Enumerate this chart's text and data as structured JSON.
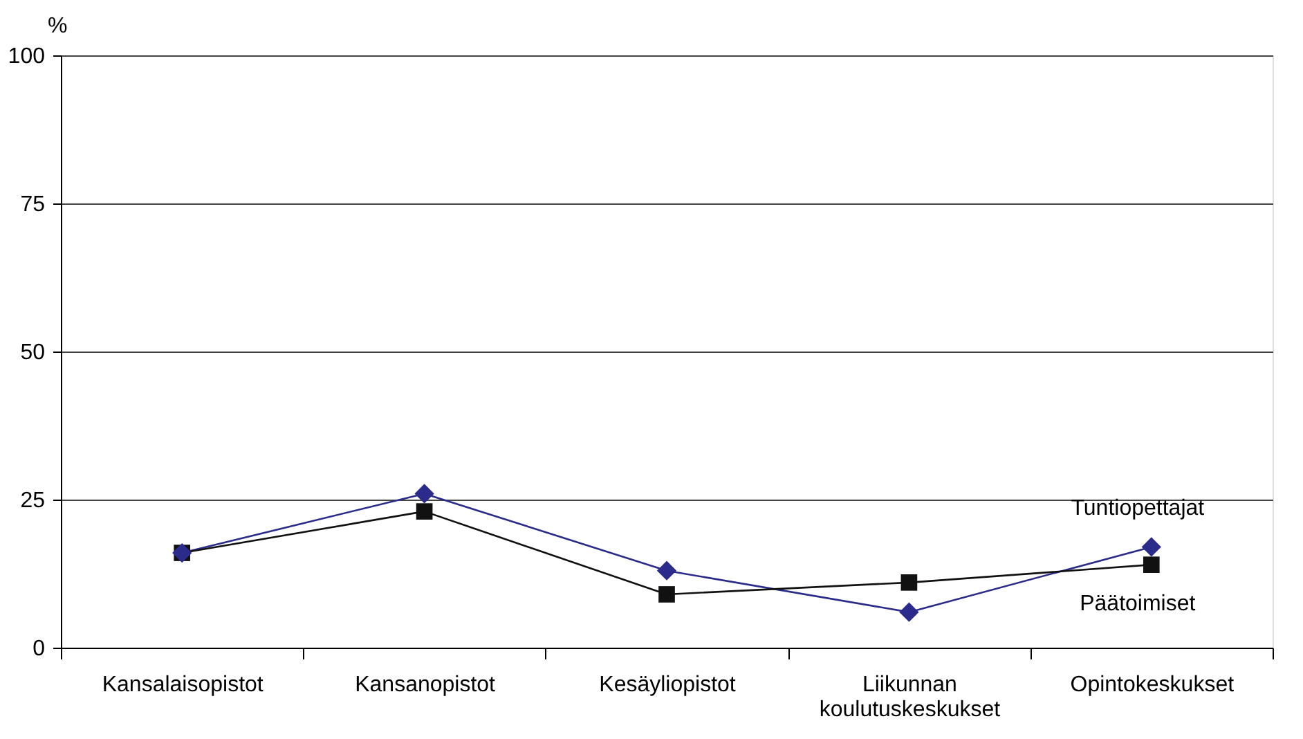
{
  "chart_data": {
    "type": "line",
    "ylabel": "%",
    "categories": [
      "Kansalaisopistot",
      "Kansanopistot",
      "Kesäyliopistot",
      "Liikunnan koulutuskeskukset",
      "Opintokeskukset"
    ],
    "series": [
      {
        "name": "Tuntiopettajat",
        "color": "#2b2b8c",
        "marker": "diamond",
        "values": [
          16,
          26,
          13,
          6,
          17
        ]
      },
      {
        "name": "Päätoimiset",
        "color": "#111111",
        "marker": "square",
        "values": [
          16,
          23,
          9,
          11,
          14
        ]
      }
    ],
    "ylim": [
      0,
      100
    ],
    "yticks": [
      0,
      25,
      50,
      75,
      100
    ],
    "grid": "y",
    "legend": false,
    "line_style": "solid"
  }
}
